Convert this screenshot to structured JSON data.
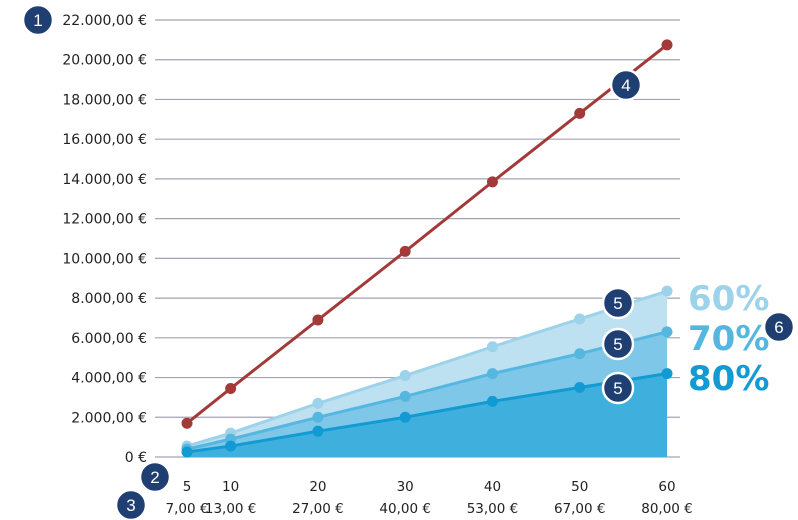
{
  "chart_data": {
    "type": "line",
    "title": "",
    "xlabel": "",
    "ylabel": "",
    "x": [
      5,
      10,
      20,
      30,
      40,
      50,
      60
    ],
    "x_tick_labels": [
      "5",
      "10",
      "20",
      "30",
      "40",
      "50",
      "60"
    ],
    "x_secondary_tick_labels": [
      "7,00 €",
      "13,00 €",
      "27,00 €",
      "40,00 €",
      "53,00 €",
      "67,00 €",
      "80,00 €"
    ],
    "ylim": [
      0,
      22000
    ],
    "y_tick_values": [
      0,
      2000,
      4000,
      6000,
      8000,
      10000,
      12000,
      14000,
      16000,
      18000,
      20000,
      22000
    ],
    "y_tick_labels": [
      "0 €",
      "2.000,00 €",
      "4.000,00 €",
      "6.000,00 €",
      "8.000,00 €",
      "10.000,00 €",
      "12.000,00 €",
      "14.000,00 €",
      "16.000,00 €",
      "18.000,00 €",
      "20.000,00 €",
      "22.000,00 €"
    ],
    "grid": true,
    "series": [
      {
        "values": [
          1700,
          3450,
          6900,
          10350,
          13850,
          17300,
          20750
        ],
        "color": "#a33a3a",
        "style": "line"
      },
      {
        "name": "60%",
        "values": [
          550,
          1200,
          2700,
          4100,
          5550,
          6950,
          8350
        ],
        "color": "#9dd3ea",
        "fill": "#bde1f1",
        "style": "area"
      },
      {
        "name": "70%",
        "values": [
          400,
          900,
          2000,
          3050,
          4200,
          5200,
          6300
        ],
        "color": "#55b7e0",
        "fill": "#7fc7e8",
        "style": "area"
      },
      {
        "name": "80%",
        "values": [
          250,
          550,
          1300,
          2000,
          2800,
          3500,
          4200
        ],
        "color": "#129bd3",
        "fill": "#3fb0de",
        "style": "area"
      }
    ]
  },
  "annotations": [
    {
      "label": "1",
      "anchor": "y-axis-top"
    },
    {
      "label": "2",
      "anchor": "x-axis"
    },
    {
      "label": "3",
      "anchor": "x-axis-secondary"
    },
    {
      "label": "4",
      "anchor": "red-line"
    },
    {
      "label": "5",
      "anchor": "series-60"
    },
    {
      "label": "5",
      "anchor": "series-70"
    },
    {
      "label": "5",
      "anchor": "series-80"
    },
    {
      "label": "6",
      "anchor": "percent-labels"
    }
  ],
  "colors": {
    "grid": "#a3a3b3",
    "badge_fill": "#1f3f72",
    "badge_stroke": "#ffffff",
    "tick_text": "#222222"
  }
}
